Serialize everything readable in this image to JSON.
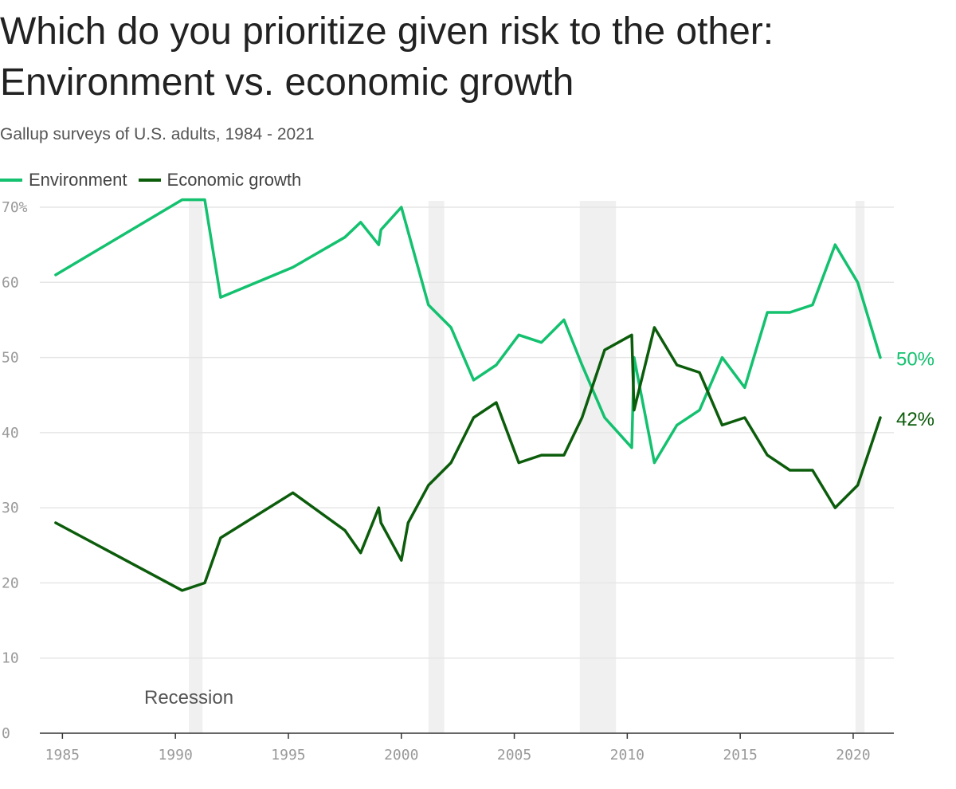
{
  "title": "Which do you prioritize given risk to the other: Environment vs. economic growth",
  "subtitle": "Gallup surveys of U.S. adults, 1984 - 2021",
  "colors": {
    "environment": "#13c16f",
    "economic_growth": "#0b5c0b",
    "recession": "#f0f0f0",
    "grid": "#e6e6e6",
    "axis": "#333333"
  },
  "chart_data": {
    "type": "line",
    "title": "Which do you prioritize given risk to the other: Environment vs. economic growth",
    "subtitle": "Gallup surveys of U.S. adults, 1984 - 2021",
    "xlim": [
      1984,
      2021.8
    ],
    "ylim": [
      0,
      70
    ],
    "x_ticks": [
      "1985",
      "1990",
      "1995",
      "2000",
      "2005",
      "2010",
      "2015",
      "2020"
    ],
    "y_ticks": [
      "70%",
      "60",
      "50",
      "40",
      "30",
      "20",
      "10",
      "0"
    ],
    "grid": true,
    "legend": "top-left",
    "series": [
      {
        "name": "Environment",
        "color": "#13c16f",
        "end_label": "50%",
        "points": [
          [
            1984.7,
            61
          ],
          [
            1990.3,
            71
          ],
          [
            1991.3,
            71
          ],
          [
            1992.0,
            58
          ],
          [
            1995.2,
            62
          ],
          [
            1997.5,
            66
          ],
          [
            1998.2,
            68
          ],
          [
            1999.0,
            65
          ],
          [
            1999.1,
            67
          ],
          [
            2000.0,
            70
          ],
          [
            2001.2,
            57
          ],
          [
            2002.2,
            54
          ],
          [
            2003.2,
            47
          ],
          [
            2004.2,
            49
          ],
          [
            2005.2,
            53
          ],
          [
            2006.2,
            52
          ],
          [
            2007.2,
            55
          ],
          [
            2008.0,
            49
          ],
          [
            2009.0,
            42
          ],
          [
            2010.2,
            38
          ],
          [
            2010.3,
            50
          ],
          [
            2011.2,
            36
          ],
          [
            2012.2,
            41
          ],
          [
            2013.2,
            43
          ],
          [
            2014.2,
            50
          ],
          [
            2015.2,
            46
          ],
          [
            2016.2,
            56
          ],
          [
            2017.2,
            56
          ],
          [
            2018.2,
            57
          ],
          [
            2019.2,
            65
          ],
          [
            2020.2,
            60
          ],
          [
            2021.2,
            50
          ]
        ]
      },
      {
        "name": "Economic growth",
        "color": "#0b5c0b",
        "end_label": "42%",
        "points": [
          [
            1984.7,
            28
          ],
          [
            1990.3,
            19
          ],
          [
            1991.3,
            20
          ],
          [
            1992.0,
            26
          ],
          [
            1995.2,
            32
          ],
          [
            1997.5,
            27
          ],
          [
            1998.2,
            24
          ],
          [
            1999.0,
            30
          ],
          [
            1999.1,
            28
          ],
          [
            2000.0,
            23
          ],
          [
            2000.3,
            28
          ],
          [
            2001.2,
            33
          ],
          [
            2002.2,
            36
          ],
          [
            2003.2,
            42
          ],
          [
            2004.2,
            44
          ],
          [
            2005.2,
            36
          ],
          [
            2006.2,
            37
          ],
          [
            2007.2,
            37
          ],
          [
            2008.0,
            42
          ],
          [
            2009.0,
            51
          ],
          [
            2010.2,
            53
          ],
          [
            2010.3,
            43
          ],
          [
            2011.2,
            54
          ],
          [
            2012.2,
            49
          ],
          [
            2013.2,
            48
          ],
          [
            2014.2,
            41
          ],
          [
            2015.2,
            42
          ],
          [
            2016.2,
            37
          ],
          [
            2017.2,
            35
          ],
          [
            2018.2,
            35
          ],
          [
            2019.2,
            30
          ],
          [
            2020.2,
            33
          ],
          [
            2021.2,
            42
          ]
        ]
      }
    ],
    "recessions": [
      [
        1990.6,
        1991.2
      ],
      [
        2001.2,
        2001.9
      ],
      [
        2007.9,
        2009.5
      ],
      [
        2020.1,
        2020.5
      ]
    ],
    "annotations": [
      {
        "text": "Recession"
      }
    ]
  }
}
